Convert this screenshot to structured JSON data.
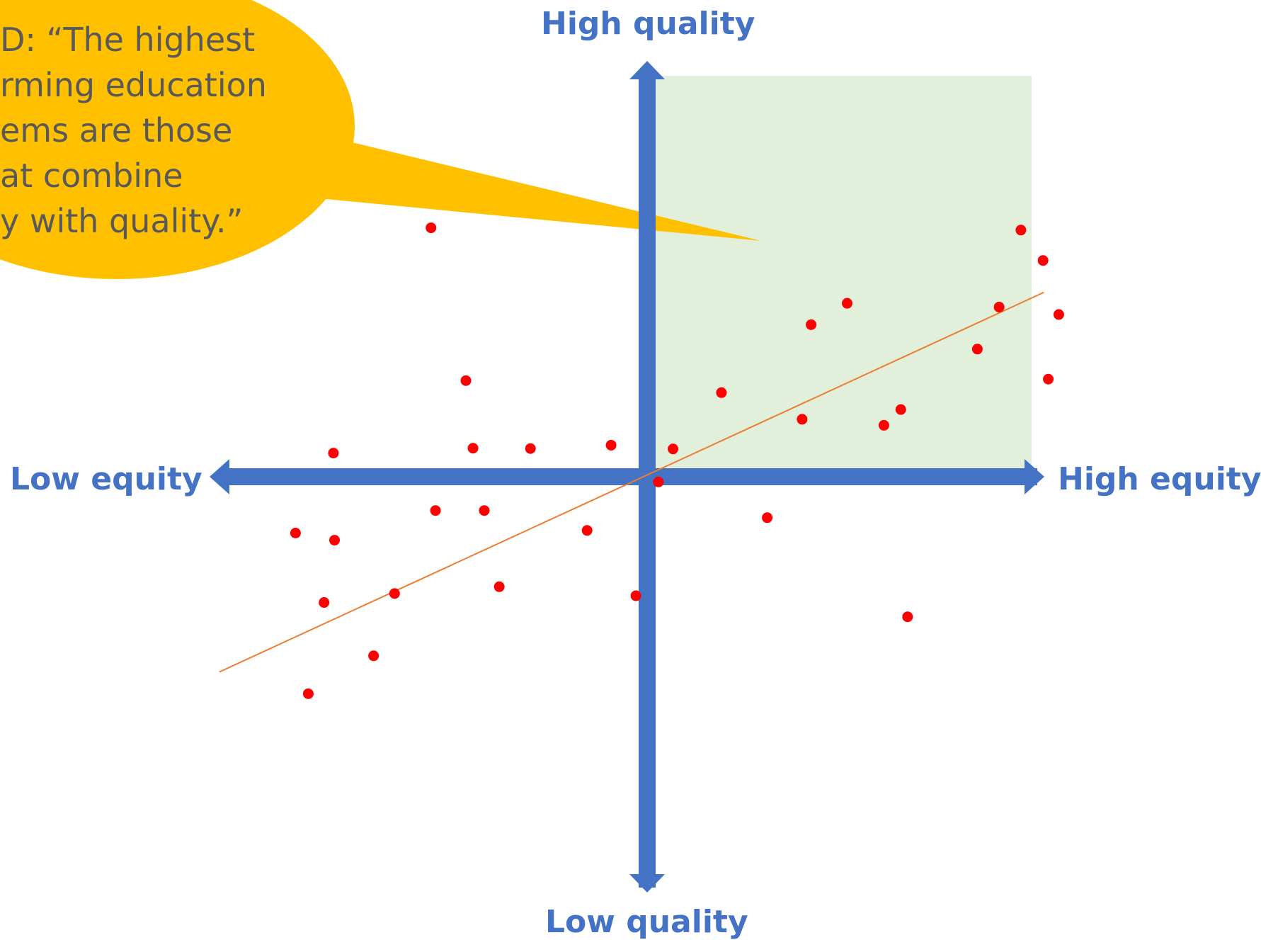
{
  "diagram": {
    "colors": {
      "axis": "#4472c4",
      "axis_label": "#4472c4",
      "quadrant_fill": "#e2efda",
      "callout_fill": "#ffc000",
      "callout_text": "#595959",
      "point": "#ff0000",
      "trend_line": "#ed7d31"
    },
    "labels": {
      "top": "High quality",
      "bottom": "Low quality",
      "left": "Low equity",
      "right": "High equity"
    },
    "callout": {
      "lines": [
        "D: “The highest",
        "rming education",
        "ems are those",
        "at combine",
        "y with quality.”"
      ]
    }
  },
  "chart_data": {
    "type": "scatter",
    "xlabel_positive": "High equity",
    "xlabel_negative": "Low equity",
    "ylabel_positive": "High quality",
    "ylabel_negative": "Low quality",
    "xlim": [
      -10,
      10
    ],
    "ylim": [
      -10,
      10
    ],
    "points": [
      [
        -5.76,
        6.63
      ],
      [
        -4.83,
        2.56
      ],
      [
        -4.64,
        0.76
      ],
      [
        -3.11,
        0.75
      ],
      [
        -0.96,
        0.84
      ],
      [
        -8.36,
        0.63
      ],
      [
        -4.34,
        -0.9
      ],
      [
        -5.64,
        -0.9
      ],
      [
        -9.37,
        -1.5
      ],
      [
        -8.33,
        -1.69
      ],
      [
        -1.6,
        -1.43
      ],
      [
        -8.61,
        -3.35
      ],
      [
        -6.73,
        -3.11
      ],
      [
        -3.94,
        -2.93
      ],
      [
        -0.3,
        -3.17
      ],
      [
        -7.29,
        -4.77
      ],
      [
        -9.03,
        -5.78
      ],
      [
        0.3,
        -0.14
      ],
      [
        0.69,
        0.74
      ],
      [
        1.98,
        2.24
      ],
      [
        3.2,
        -1.09
      ],
      [
        4.13,
        1.53
      ],
      [
        4.37,
        4.05
      ],
      [
        5.33,
        4.62
      ],
      [
        6.31,
        1.37
      ],
      [
        6.76,
        1.79
      ],
      [
        6.94,
        -3.73
      ],
      [
        8.8,
        3.4
      ],
      [
        9.38,
        4.52
      ],
      [
        9.96,
        6.57
      ],
      [
        10.55,
        5.76
      ],
      [
        10.69,
        2.6
      ],
      [
        10.97,
        4.32
      ]
    ],
    "trend_line": {
      "from": [
        -11.4,
        -5.2
      ],
      "to": [
        10.57,
        4.91
      ]
    },
    "highlight_quadrant": "top-right"
  }
}
